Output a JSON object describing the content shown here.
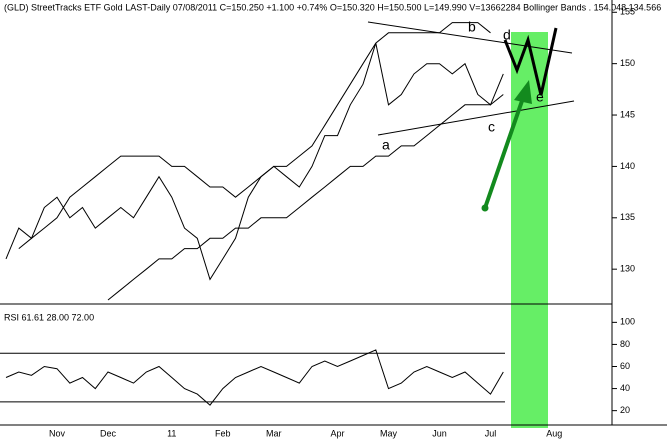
{
  "chart_data": [
    {
      "type": "line",
      "title": "(GLD) StreetTracks ETF Gold LAST-Daily   07/08/2011   C=150.250   +1.100   +0.74%   O=150.320   H=150.500   L=149.990   V=13662284   Bollinger Bands . 154.048   134.566",
      "categories": [
        null,
        null,
        null,
        null,
        "Nov",
        null,
        null,
        null,
        "Dec",
        null,
        null,
        null,
        null,
        "11",
        null,
        null,
        null,
        "Feb",
        null,
        null,
        null,
        "Mar",
        null,
        null,
        null,
        null,
        "Apr",
        null,
        null,
        null,
        "May",
        null,
        null,
        null,
        "Jun",
        null,
        null,
        null,
        "Jul",
        null,
        null,
        null,
        null,
        "Aug",
        null,
        null,
        null,
        null
      ],
      "series": [
        {
          "name": "Price",
          "color": "#000000",
          "values": [
            131,
            134,
            133,
            136,
            137,
            135,
            136,
            134,
            135,
            136,
            135,
            137,
            139,
            137,
            134,
            133,
            129,
            131,
            133,
            137,
            139,
            140,
            139,
            138,
            140,
            143,
            143,
            146,
            148,
            152,
            146,
            147,
            149,
            150,
            150,
            149,
            150,
            147,
            146,
            149,
            null,
            null,
            null,
            null,
            null,
            null,
            null,
            null
          ]
        },
        {
          "name": "Upper Band",
          "color": "#000000",
          "values": [
            null,
            132,
            133,
            134,
            135,
            137,
            138,
            139,
            140,
            141,
            141,
            141,
            141,
            140,
            140,
            139,
            138,
            138,
            137,
            138,
            139,
            140,
            140,
            141,
            142,
            144,
            146,
            148,
            150,
            152,
            153,
            153,
            153,
            153,
            153,
            154,
            154,
            154,
            153,
            null,
            null,
            null,
            null,
            null,
            null,
            null,
            null,
            null
          ]
        },
        {
          "name": "Lower Band",
          "color": "#000000",
          "values": [
            null,
            null,
            null,
            null,
            null,
            null,
            null,
            null,
            127,
            128,
            129,
            130,
            131,
            131,
            132,
            132,
            133,
            133,
            134,
            134,
            135,
            135,
            135,
            136,
            137,
            138,
            139,
            140,
            140,
            141,
            141,
            142,
            142,
            143,
            144,
            145,
            146,
            146,
            146,
            147,
            null,
            null,
            null,
            null,
            null,
            null,
            null,
            null
          ]
        }
      ],
      "annotations": [
        "a",
        "b",
        "c",
        "d",
        "e"
      ],
      "ylim": [
        127,
        156
      ],
      "yticks": [
        130,
        135,
        140,
        145,
        150,
        155
      ]
    },
    {
      "type": "line",
      "title": "RSI 61.61 28.00 72.00",
      "series": [
        {
          "name": "RSI",
          "color": "#000000",
          "values": [
            50,
            55,
            52,
            60,
            58,
            45,
            50,
            40,
            55,
            50,
            45,
            55,
            60,
            50,
            40,
            35,
            25,
            40,
            50,
            55,
            60,
            55,
            50,
            45,
            60,
            65,
            60,
            65,
            70,
            75,
            40,
            45,
            55,
            60,
            55,
            50,
            55,
            45,
            35,
            55,
            null,
            null,
            null,
            null,
            null,
            null,
            null,
            null
          ]
        }
      ],
      "levels": [
        28,
        72
      ],
      "ylim": [
        7,
        113
      ],
      "yticks": [
        20,
        40,
        60,
        80,
        100
      ]
    }
  ]
}
